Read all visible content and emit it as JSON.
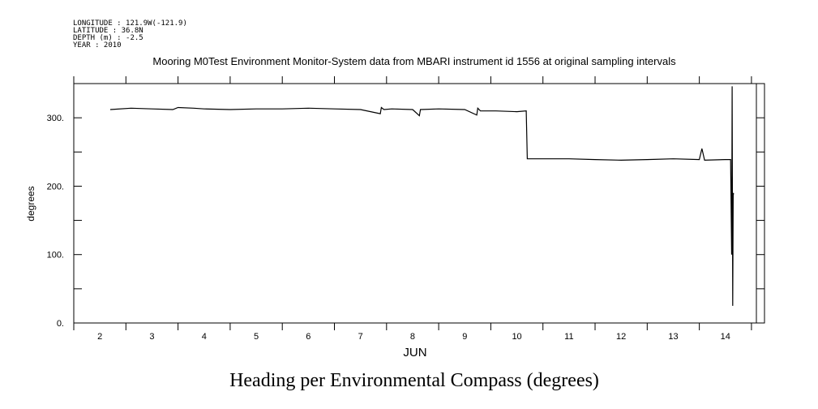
{
  "header": {
    "longitude": "LONGITUDE : 121.9W(-121.9)",
    "latitude": "LATITUDE : 36.8N",
    "depth": "DEPTH (m) : -2.5",
    "year": "YEAR : 2010"
  },
  "caption": "Heading per Environmental Compass (degrees)",
  "chart_data": {
    "type": "line",
    "title": "Mooring M0Test Environment Monitor-System data from MBARI instrument id 1556 at original sampling intervals",
    "xlabel": "JUN",
    "ylabel": "degrees",
    "xlim": [
      1.5,
      14.75
    ],
    "ylim": [
      0,
      350
    ],
    "y_ticks": [
      0,
      100,
      200,
      300
    ],
    "y_tick_labels": [
      "0.",
      "100.",
      "200.",
      "300."
    ],
    "x_ticks": [
      2,
      3,
      4,
      5,
      6,
      7,
      8,
      9,
      10,
      11,
      12,
      13,
      14
    ],
    "x_tick_labels": [
      "2",
      "3",
      "4",
      "5",
      "6",
      "7",
      "8",
      "9",
      "10",
      "11",
      "12",
      "13",
      "14"
    ],
    "grid": false,
    "series": [
      {
        "color": "#000000",
        "x": [
          2.2,
          2.6,
          3.0,
          3.4,
          3.5,
          3.8,
          4.0,
          4.5,
          5.0,
          5.5,
          6.0,
          6.5,
          7.0,
          7.38,
          7.4,
          7.45,
          7.6,
          8.0,
          8.13,
          8.15,
          8.5,
          9.0,
          9.23,
          9.25,
          9.3,
          9.6,
          10.0,
          10.18,
          10.2,
          10.3,
          10.6,
          11.0,
          11.5,
          12.0,
          12.5,
          13.0,
          13.5,
          13.55,
          13.6,
          14.0,
          14.1,
          14.12,
          14.13,
          14.14,
          14.15,
          14.16
        ],
        "y": [
          312,
          314,
          313,
          312,
          315,
          314,
          313,
          312,
          313,
          313,
          314,
          313,
          312,
          306,
          315,
          312,
          313,
          312,
          303,
          312,
          313,
          312,
          304,
          314,
          310,
          310,
          309,
          310,
          240,
          240,
          240,
          240,
          239,
          238,
          239,
          240,
          239,
          255,
          238,
          239,
          239,
          100,
          346,
          25,
          190,
          188
        ]
      }
    ]
  }
}
